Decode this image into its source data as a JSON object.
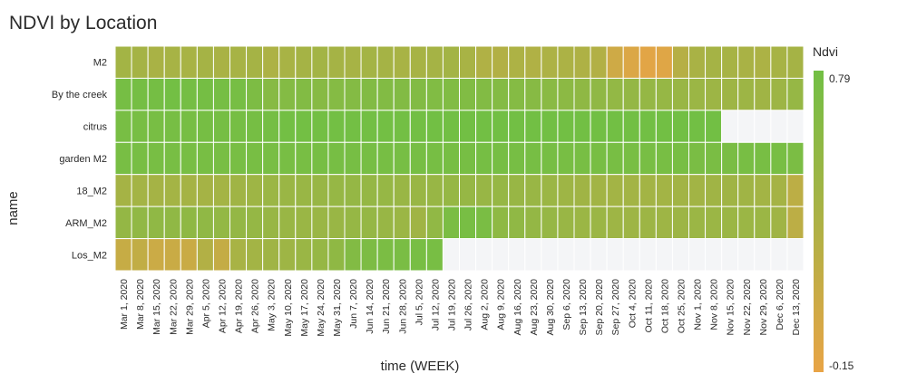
{
  "chart_data": {
    "type": "heatmap",
    "title": "NDVI by Location",
    "xlabel": "time (WEEK)",
    "ylabel": "name",
    "x": [
      "Mar 1, 2020",
      "Mar 8, 2020",
      "Mar 15, 2020",
      "Mar 22, 2020",
      "Mar 29, 2020",
      "Apr 5, 2020",
      "Apr 12, 2020",
      "Apr 19, 2020",
      "Apr 26, 2020",
      "May 3, 2020",
      "May 10, 2020",
      "May 17, 2020",
      "May 24, 2020",
      "May 31, 2020",
      "Jun 7, 2020",
      "Jun 14, 2020",
      "Jun 21, 2020",
      "Jun 28, 2020",
      "Jul 5, 2020",
      "Jul 12, 2020",
      "Jul 19, 2020",
      "Jul 26, 2020",
      "Aug 2, 2020",
      "Aug 9, 2020",
      "Aug 16, 2020",
      "Aug 23, 2020",
      "Aug 30, 2020",
      "Sep 6, 2020",
      "Sep 13, 2020",
      "Sep 20, 2020",
      "Sep 27, 2020",
      "Oct 4, 2020",
      "Oct 11, 2020",
      "Oct 18, 2020",
      "Oct 25, 2020",
      "Nov 1, 2020",
      "Nov 8, 2020",
      "Nov 15, 2020",
      "Nov 22, 2020",
      "Nov 29, 2020",
      "Dec 6, 2020",
      "Dec 13, 2020"
    ],
    "y": [
      "M2",
      "By the creek",
      "citrus",
      "garden M2",
      "18_M2",
      "ARM_M2",
      "Los_M2"
    ],
    "z": [
      [
        0.4,
        0.38,
        0.35,
        0.37,
        0.36,
        0.38,
        0.35,
        0.37,
        0.38,
        0.32,
        0.36,
        0.38,
        0.4,
        0.38,
        0.37,
        0.39,
        0.38,
        0.36,
        0.37,
        0.38,
        0.4,
        0.36,
        0.3,
        0.28,
        0.32,
        0.3,
        0.32,
        0.33,
        0.31,
        0.28,
        0.06,
        -0.05,
        -0.1,
        -0.08,
        0.25,
        0.35,
        0.38,
        0.37,
        0.35,
        0.33,
        0.37,
        0.38
      ],
      [
        0.76,
        0.77,
        0.77,
        0.78,
        0.77,
        0.77,
        0.76,
        0.75,
        0.7,
        0.62,
        0.65,
        0.66,
        0.62,
        0.64,
        0.65,
        0.66,
        0.66,
        0.66,
        0.66,
        0.67,
        0.67,
        0.67,
        0.66,
        0.65,
        0.64,
        0.62,
        0.6,
        0.58,
        0.56,
        0.55,
        0.53,
        0.52,
        0.51,
        0.5,
        0.48,
        0.46,
        0.45,
        0.44,
        0.45,
        0.42,
        0.45,
        0.5
      ],
      [
        0.74,
        0.74,
        0.74,
        0.75,
        0.75,
        0.76,
        0.76,
        0.76,
        0.76,
        0.77,
        0.78,
        0.78,
        0.78,
        0.78,
        0.78,
        0.78,
        0.78,
        0.78,
        0.78,
        0.79,
        0.79,
        0.79,
        0.79,
        0.79,
        0.79,
        0.79,
        0.79,
        0.79,
        0.79,
        0.79,
        0.79,
        0.79,
        0.79,
        0.79,
        0.79,
        0.79,
        0.79,
        null,
        null,
        null,
        null,
        null
      ],
      [
        0.74,
        0.74,
        0.74,
        0.74,
        0.74,
        0.74,
        0.74,
        0.74,
        0.74,
        0.74,
        0.74,
        0.74,
        0.75,
        0.75,
        0.75,
        0.75,
        0.75,
        0.75,
        0.75,
        0.75,
        0.75,
        0.75,
        0.76,
        0.75,
        0.75,
        0.75,
        0.75,
        0.74,
        0.74,
        0.74,
        0.74,
        0.74,
        0.74,
        0.74,
        0.74,
        0.73,
        0.73,
        0.73,
        0.74,
        0.74,
        0.74,
        0.72
      ],
      [
        0.38,
        0.39,
        0.38,
        0.39,
        0.38,
        0.38,
        0.39,
        0.42,
        0.44,
        0.46,
        0.47,
        0.48,
        0.49,
        0.5,
        0.51,
        0.51,
        0.5,
        0.48,
        0.48,
        0.49,
        0.5,
        0.5,
        0.49,
        0.5,
        0.49,
        0.48,
        0.46,
        0.44,
        0.42,
        0.41,
        0.4,
        0.4,
        0.4,
        0.4,
        0.41,
        0.41,
        0.42,
        0.42,
        0.42,
        0.4,
        0.38,
        0.2
      ],
      [
        0.52,
        0.54,
        0.55,
        0.55,
        0.56,
        0.55,
        0.53,
        0.52,
        0.51,
        0.49,
        0.48,
        0.47,
        0.47,
        0.48,
        0.5,
        0.51,
        0.49,
        0.46,
        0.42,
        0.54,
        0.72,
        0.74,
        0.73,
        0.57,
        0.55,
        0.52,
        0.5,
        0.48,
        0.46,
        0.46,
        0.44,
        0.44,
        0.45,
        0.44,
        0.45,
        0.46,
        0.46,
        0.46,
        0.46,
        0.46,
        0.42,
        0.2
      ],
      [
        0.12,
        0.16,
        0.08,
        0.1,
        0.1,
        0.28,
        0.14,
        0.36,
        0.4,
        0.42,
        0.44,
        0.47,
        0.5,
        0.56,
        0.66,
        0.7,
        0.72,
        0.73,
        0.74,
        0.74,
        null,
        null,
        null,
        null,
        null,
        null,
        null,
        null,
        null,
        null,
        null,
        null,
        null,
        null,
        null,
        null,
        null,
        null,
        null,
        null,
        null,
        null
      ]
    ],
    "zmin": -0.15,
    "zmax": 0.79,
    "colorscale": [
      "#e8a446",
      "#72bf44"
    ],
    "missing_color": "#f4f5f7",
    "legend": {
      "title": "Ndvi",
      "ticks": [
        "0.79",
        "-0.15"
      ],
      "placement": "right"
    }
  }
}
